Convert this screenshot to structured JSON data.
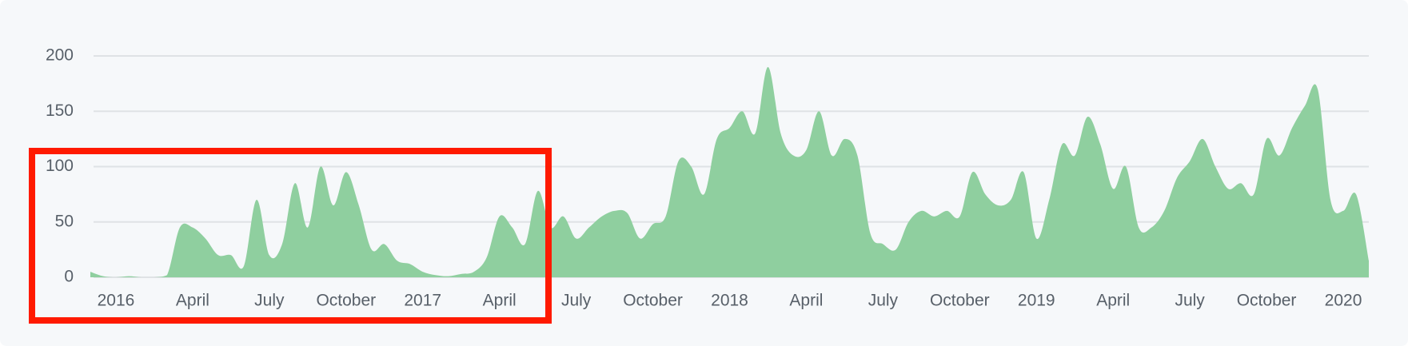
{
  "chart_data": {
    "type": "area",
    "color": "#8fcf9f",
    "grid": true,
    "ylim": [
      0,
      200
    ],
    "yticks": [
      0,
      50,
      100,
      150,
      200
    ],
    "categories": [
      null,
      null,
      "2016",
      null,
      null,
      null,
      null,
      null,
      "April",
      null,
      null,
      null,
      null,
      null,
      "July",
      null,
      null,
      null,
      null,
      null,
      "October",
      null,
      null,
      null,
      null,
      null,
      "2017",
      null,
      null,
      null,
      null,
      null,
      "April",
      null,
      null,
      null,
      null,
      null,
      "July",
      null,
      null,
      null,
      null,
      null,
      "October",
      null,
      null,
      null,
      null,
      null,
      "2018",
      null,
      null,
      null,
      null,
      null,
      "April",
      null,
      null,
      null,
      null,
      null,
      "July",
      null,
      null,
      null,
      null,
      null,
      "October",
      null,
      null,
      null,
      null,
      null,
      "2019",
      null,
      null,
      null,
      null,
      null,
      "April",
      null,
      null,
      null,
      null,
      null,
      "July",
      null,
      null,
      null,
      null,
      null,
      "October",
      null,
      null,
      null,
      null,
      null,
      "2020",
      null,
      null
    ],
    "values": [
      5,
      1,
      0,
      1,
      0,
      0,
      2,
      45,
      45,
      35,
      20,
      20,
      10,
      70,
      20,
      30,
      85,
      45,
      100,
      65,
      95,
      65,
      25,
      30,
      15,
      12,
      5,
      2,
      1,
      3,
      5,
      18,
      55,
      45,
      30,
      78,
      45,
      55,
      35,
      45,
      55,
      60,
      58,
      35,
      48,
      55,
      105,
      100,
      75,
      125,
      135,
      150,
      130,
      190,
      130,
      110,
      115,
      150,
      110,
      125,
      110,
      40,
      30,
      25,
      50,
      60,
      55,
      60,
      55,
      95,
      75,
      65,
      70,
      95,
      35,
      70,
      120,
      110,
      145,
      120,
      80,
      100,
      45,
      45,
      60,
      90,
      105,
      125,
      100,
      80,
      85,
      75,
      125,
      110,
      135,
      155,
      170,
      70,
      60,
      75,
      15
    ]
  }
}
